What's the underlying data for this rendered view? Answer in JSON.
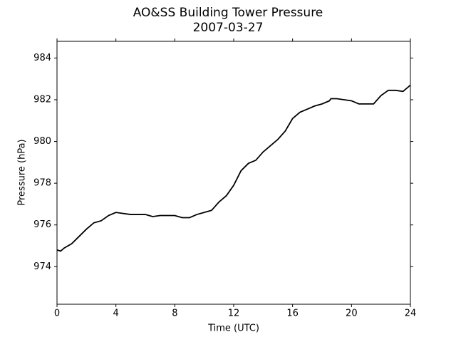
{
  "chart_data": {
    "type": "line",
    "title": "AO&SS Building Tower Pressure",
    "subtitle": "2007-03-27",
    "x_label": "Time (UTC)",
    "y_label": "Pressure (hPa)",
    "x": [
      0,
      0.25,
      0.5,
      1,
      1.5,
      2,
      2.5,
      3,
      3.5,
      4,
      4.5,
      5,
      5.5,
      6,
      6.5,
      7,
      7.5,
      8,
      8.5,
      9,
      9.5,
      10,
      10.5,
      11,
      11.5,
      12,
      12.5,
      13,
      13.5,
      14,
      14.5,
      15,
      15.5,
      16,
      16.5,
      17,
      17.5,
      18,
      18.5,
      18.6,
      19,
      19.5,
      20,
      20.5,
      21,
      21.5,
      22,
      22.5,
      23,
      23.5,
      24
    ],
    "series": [
      {
        "name": "Pressure",
        "color": "#000000",
        "values": [
          974.8,
          974.75,
          974.9,
          975.1,
          975.45,
          975.8,
          976.1,
          976.2,
          976.45,
          976.6,
          976.55,
          976.5,
          976.5,
          976.5,
          976.4,
          976.45,
          976.45,
          976.45,
          976.35,
          976.35,
          976.5,
          976.6,
          976.7,
          977.1,
          977.4,
          977.9,
          978.6,
          978.95,
          979.1,
          979.5,
          979.8,
          980.1,
          980.5,
          981.1,
          981.4,
          981.55,
          981.7,
          981.8,
          981.95,
          982.05,
          982.05,
          982.0,
          981.95,
          981.8,
          981.8,
          981.8,
          982.2,
          982.45,
          982.45,
          982.4,
          982.7
        ]
      }
    ],
    "xlim": [
      0,
      24
    ],
    "xticks": [
      0,
      4,
      8,
      12,
      16,
      20,
      24
    ],
    "ylim": [
      972.2,
      984.8
    ],
    "yticks": [
      974,
      976,
      978,
      980,
      982,
      984
    ],
    "grid": false
  }
}
